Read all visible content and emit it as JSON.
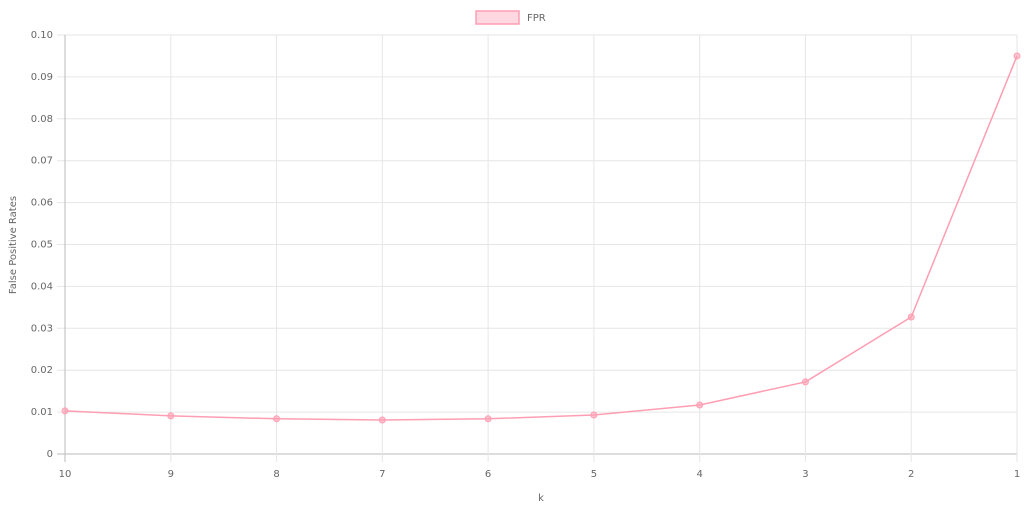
{
  "chart_data": {
    "type": "line",
    "x_label": "k",
    "y_label": "False Positive Rates",
    "categories": [
      "10",
      "9",
      "8",
      "7",
      "6",
      "5",
      "4",
      "3",
      "2",
      "1"
    ],
    "series": [
      {
        "name": "FPR",
        "color": "#ff9eb3",
        "values": [
          0.0103,
          0.0091,
          0.0084,
          0.0081,
          0.0084,
          0.0093,
          0.0117,
          0.0172,
          0.0327,
          0.095
        ]
      }
    ],
    "ylim": [
      0,
      0.1
    ],
    "yticks": [
      0,
      0.01,
      0.02,
      0.03,
      0.04,
      0.05,
      0.06,
      0.07,
      0.08,
      0.09,
      {
        "value": 0.1,
        "label": "0.10"
      }
    ],
    "grid": true,
    "legend": "top"
  }
}
